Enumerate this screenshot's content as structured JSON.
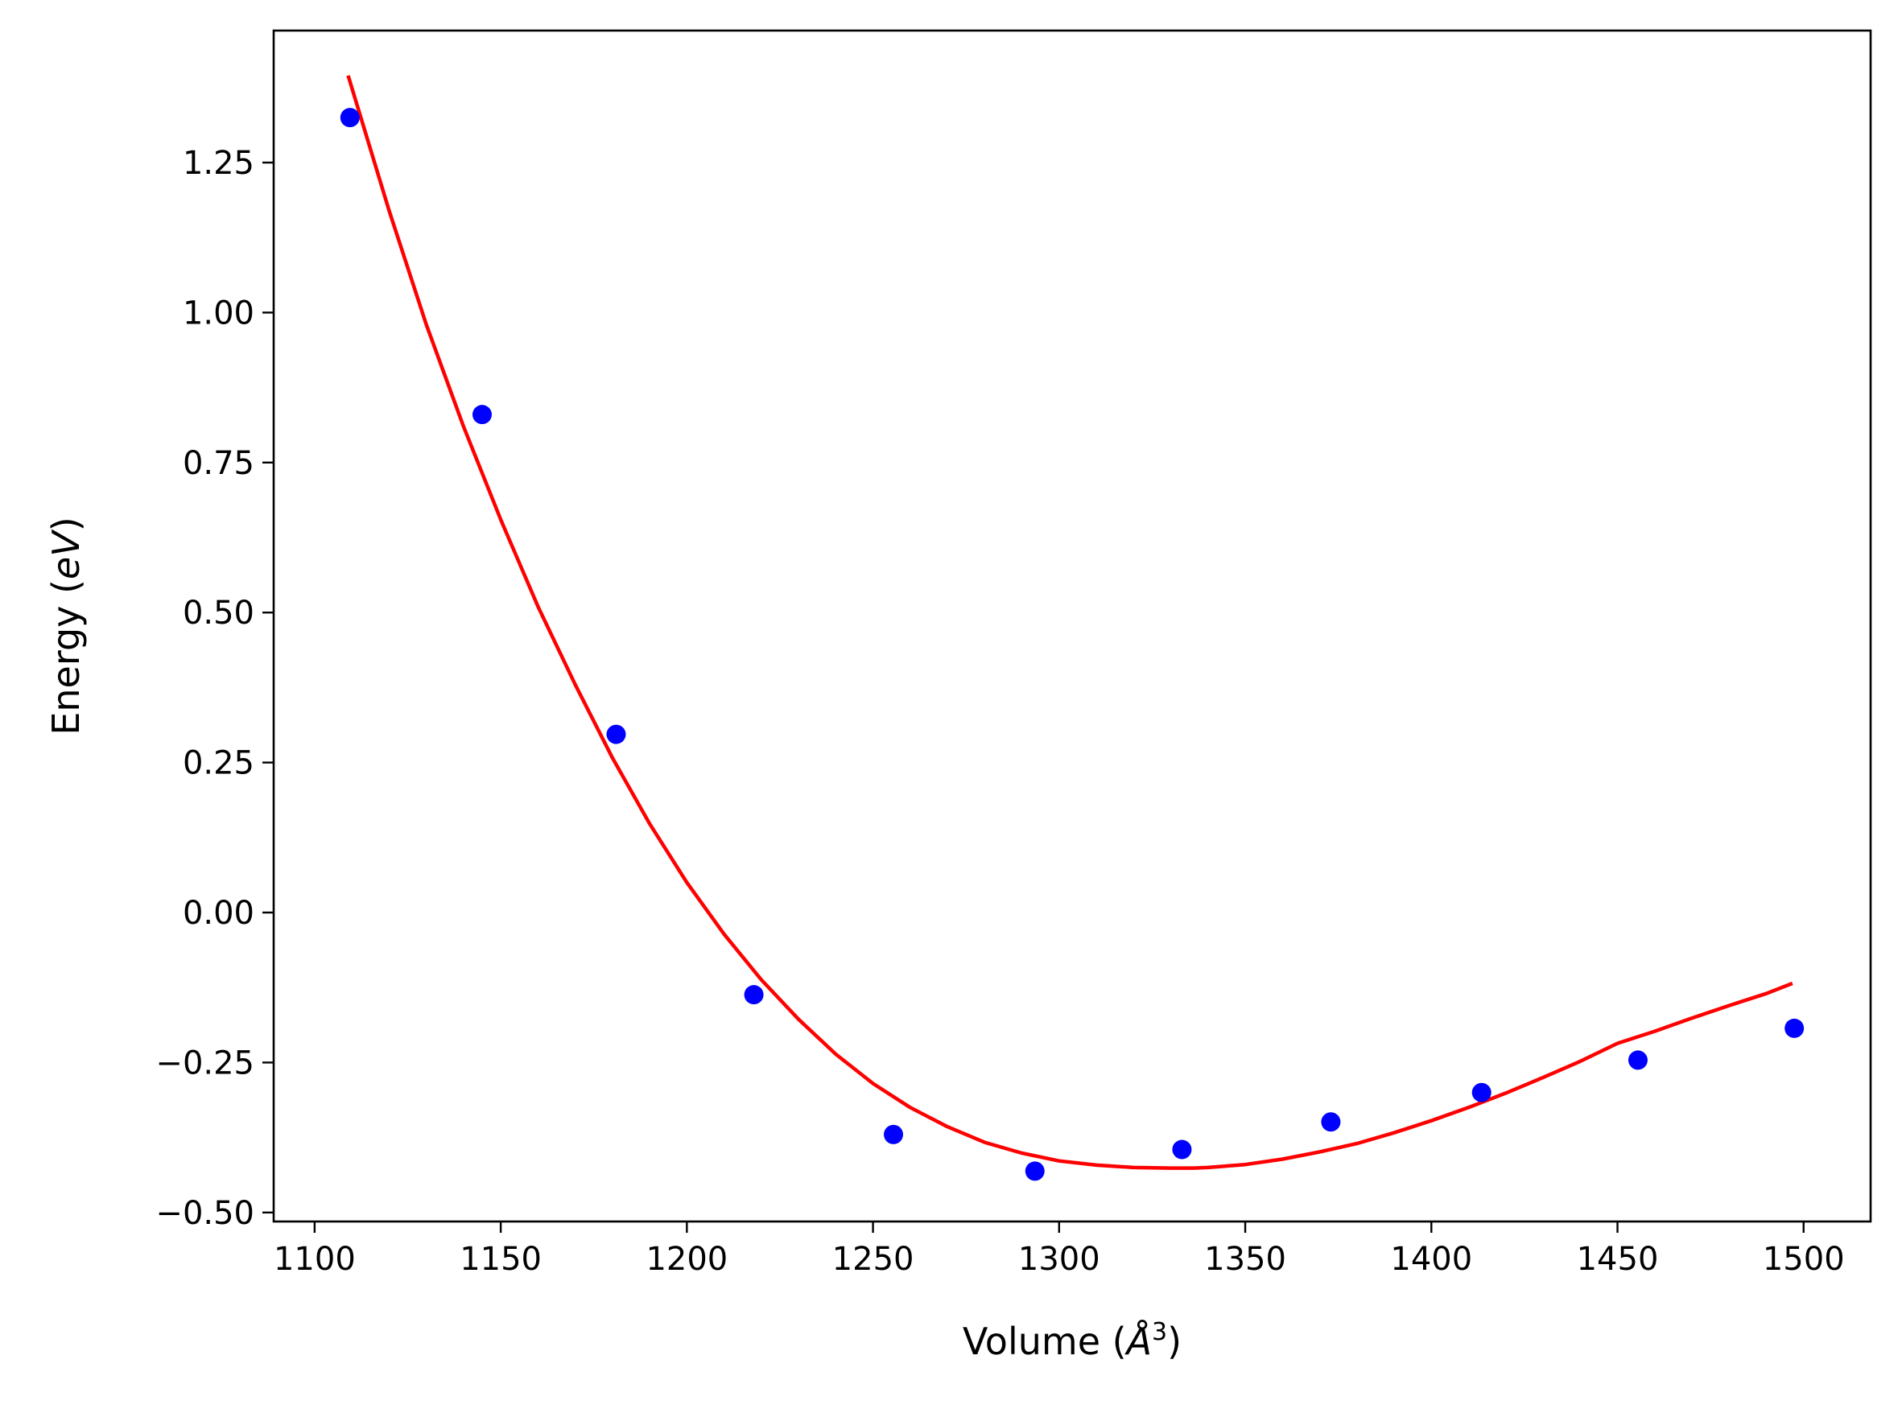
{
  "chart_data": {
    "type": "scatter",
    "title": "",
    "xlabel": "Volume (",
    "xlabel_math": "Å",
    "xlabel_sup": "3",
    "xlabel_end": ")",
    "ylabel": "Energy (",
    "ylabel_math": "eV",
    "ylabel_end": ")",
    "xlim": [
      1089,
      1518
    ],
    "ylim": [
      -0.515,
      1.47
    ],
    "x_ticks": [
      1100,
      1150,
      1200,
      1250,
      1300,
      1350,
      1400,
      1450,
      1500
    ],
    "x_tick_labels": [
      "1100",
      "1150",
      "1200",
      "1250",
      "1300",
      "1350",
      "1400",
      "1450",
      "1500"
    ],
    "y_ticks": [
      -0.5,
      -0.25,
      0.0,
      0.25,
      0.5,
      0.75,
      1.0,
      1.25
    ],
    "y_tick_labels": [
      "−0.50",
      "−0.25",
      "0.00",
      "0.25",
      "0.50",
      "0.75",
      "1.00",
      "1.25"
    ],
    "grid": false,
    "legend": "none",
    "series": [
      {
        "kind": "points",
        "color": "#0000ff",
        "x": [
          1109.5,
          1145,
          1181,
          1218,
          1255.5,
          1293.5,
          1333,
          1373,
          1413.5,
          1455.5,
          1497.5
        ],
        "y": [
          1.325,
          0.83,
          0.297,
          -0.137,
          -0.37,
          -0.431,
          -0.395,
          -0.349,
          -0.3,
          -0.246,
          -0.193
        ]
      },
      {
        "kind": "fit-line",
        "color": "#ff0000",
        "x": [
          1109,
          1120,
          1130,
          1140,
          1150,
          1160,
          1170,
          1180,
          1190,
          1200,
          1210,
          1220,
          1230,
          1240,
          1250,
          1260,
          1270,
          1280,
          1290,
          1300,
          1310,
          1320,
          1330,
          1336,
          1340,
          1350,
          1360,
          1370,
          1380,
          1390,
          1400,
          1410,
          1420,
          1430,
          1440,
          1450,
          1460,
          1470,
          1480,
          1490,
          1497
        ],
        "y": [
          1.395,
          1.17,
          0.98,
          0.81,
          0.655,
          0.51,
          0.38,
          0.258,
          0.148,
          0.05,
          -0.036,
          -0.112,
          -0.178,
          -0.236,
          -0.285,
          -0.325,
          -0.357,
          -0.383,
          -0.401,
          -0.414,
          -0.421,
          -0.425,
          -0.426,
          -0.426,
          -0.425,
          -0.42,
          -0.411,
          -0.399,
          -0.385,
          -0.367,
          -0.347,
          -0.325,
          -0.301,
          -0.275,
          -0.248,
          -0.218,
          -0.198,
          -0.176,
          -0.155,
          -0.135,
          -0.118
        ]
      }
    ]
  }
}
